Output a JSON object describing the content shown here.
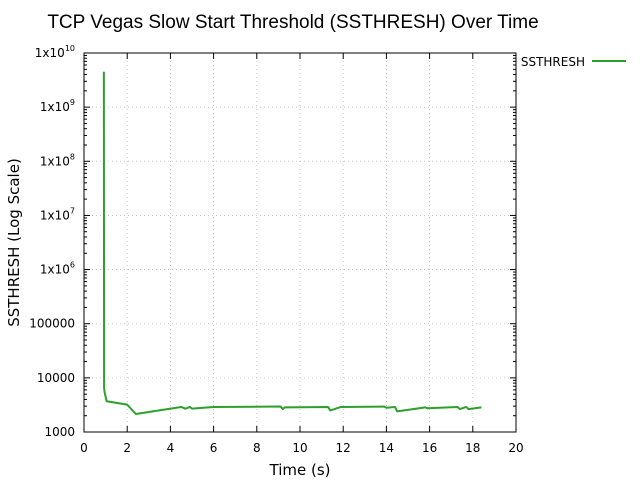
{
  "chart_data": {
    "type": "line",
    "title": "TCP Vegas Slow Start Threshold (SSTHRESH) Over Time",
    "xlabel": "Time (s)",
    "ylabel": "SSTHRESH (Log Scale)",
    "xlim": [
      0,
      20
    ],
    "ylim": [
      1000,
      10000000000
    ],
    "yscale": "log",
    "grid": true,
    "legend_position": "top-right-outside",
    "x_ticks": [
      "0",
      "2",
      "4",
      "6",
      "8",
      "10",
      "12",
      "14",
      "16",
      "18",
      "20"
    ],
    "y_ticks": [
      {
        "value": 1000,
        "label": "1000"
      },
      {
        "value": 10000,
        "label": "10000"
      },
      {
        "value": 100000,
        "label": "100000"
      },
      {
        "value": 1000000,
        "label": "1x10",
        "exp": "6"
      },
      {
        "value": 10000000,
        "label": "1x10",
        "exp": "7"
      },
      {
        "value": 100000000,
        "label": "1x10",
        "exp": "8"
      },
      {
        "value": 1000000000,
        "label": "1x10",
        "exp": "9"
      },
      {
        "value": 10000000000,
        "label": "1x10",
        "exp": "10"
      }
    ],
    "series": [
      {
        "name": "SSTHRESH",
        "color": "#2ca02c",
        "x": [
          0.92,
          0.93,
          0.95,
          1.05,
          2.0,
          2.4,
          4.5,
          4.6,
          4.7,
          4.9,
          5.0,
          6.0,
          9.1,
          9.2,
          9.3,
          11.3,
          11.4,
          11.9,
          13.9,
          14.0,
          14.4,
          14.5,
          15.8,
          15.9,
          17.3,
          17.4,
          17.7,
          17.8,
          18.4
        ],
        "y": [
          4500000000,
          6500,
          5500,
          3700,
          3200,
          2150,
          2900,
          2800,
          2700,
          2900,
          2700,
          2900,
          2950,
          2650,
          2850,
          2900,
          2500,
          2900,
          2950,
          2800,
          2900,
          2400,
          2850,
          2750,
          2900,
          2650,
          2900,
          2650,
          2850
        ]
      }
    ]
  }
}
